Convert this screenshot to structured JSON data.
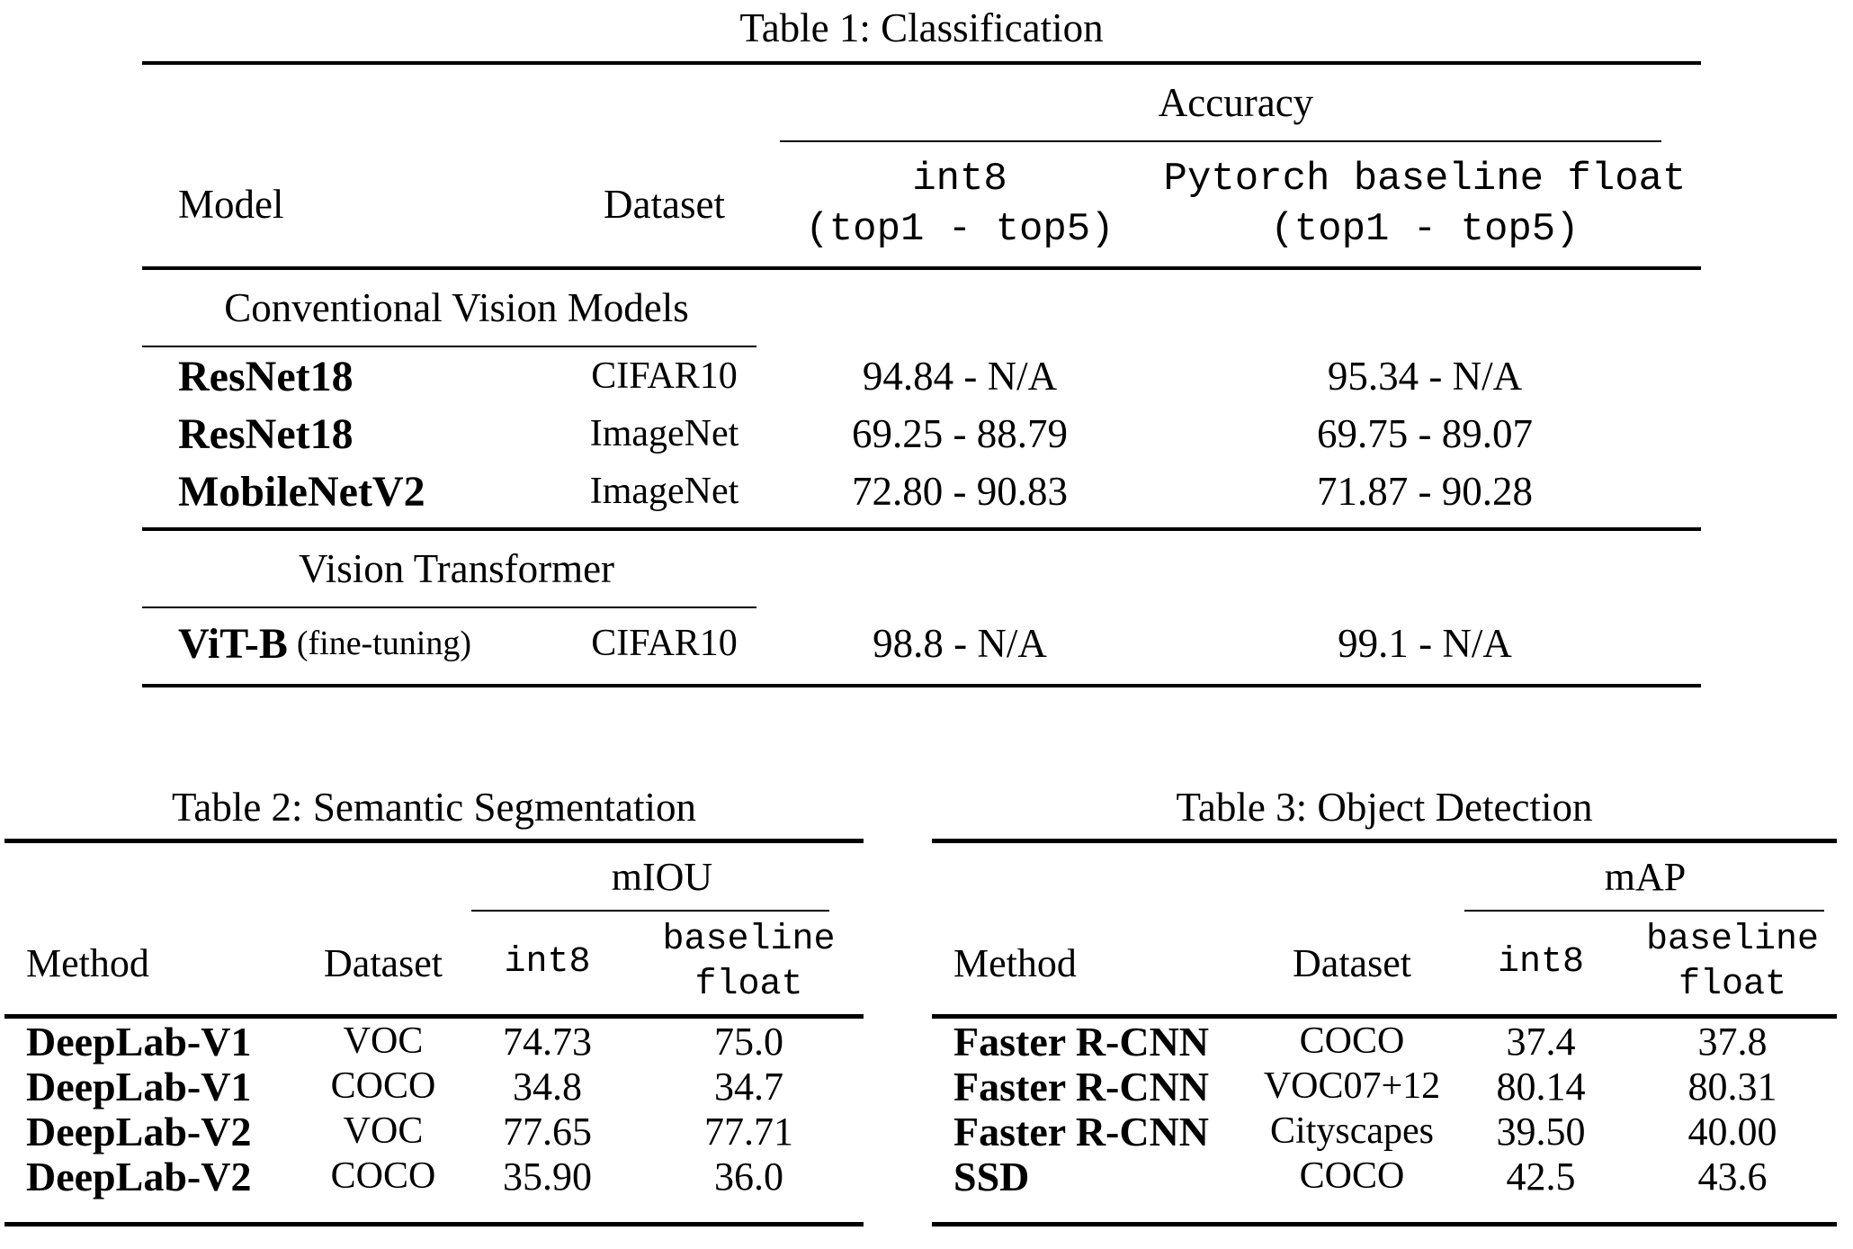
{
  "table1": {
    "caption": "Table 1: Classification",
    "group_header": "Accuracy",
    "headers": {
      "model": "Model",
      "dataset": "Dataset",
      "int8_line1": "int8",
      "int8_line2": "(top1 - top5)",
      "float_line1": "Pytorch baseline float",
      "float_line2": "(top1 - top5)"
    },
    "sections": [
      {
        "title": "Conventional Vision Models",
        "rows": [
          {
            "model": "ResNet18",
            "dataset": "CIFAR10",
            "int8": "94.84 - N/A",
            "baseline": "95.34 - N/A"
          },
          {
            "model": "ResNet18",
            "dataset": "ImageNet",
            "int8": "69.25 - 88.79",
            "baseline": "69.75 - 89.07"
          },
          {
            "model": "MobileNetV2",
            "dataset": "ImageNet",
            "int8": "72.80 - 90.83",
            "baseline": "71.87 - 90.28"
          }
        ]
      },
      {
        "title": "Vision Transformer",
        "rows": [
          {
            "model": "ViT-B",
            "model_suffix": "(fine-tuning)",
            "dataset": "CIFAR10",
            "int8": "98.8 - N/A",
            "baseline": "99.1 - N/A"
          }
        ]
      }
    ]
  },
  "table2": {
    "caption": "Table 2: Semantic Segmentation",
    "group_header": "mIOU",
    "headers": {
      "method": "Method",
      "dataset": "Dataset",
      "int8": "int8",
      "baseline_line1": "baseline",
      "baseline_line2": "float"
    },
    "rows": [
      {
        "method": "DeepLab-V1",
        "dataset": "VOC",
        "int8": "74.73",
        "baseline": "75.0"
      },
      {
        "method": "DeepLab-V1",
        "dataset": "COCO",
        "int8": "34.8",
        "baseline": "34.7"
      },
      {
        "method": "DeepLab-V2",
        "dataset": "VOC",
        "int8": "77.65",
        "baseline": "77.71"
      },
      {
        "method": "DeepLab-V2",
        "dataset": "COCO",
        "int8": "35.90",
        "baseline": "36.0"
      }
    ]
  },
  "table3": {
    "caption": "Table 3: Object Detection",
    "group_header": "mAP",
    "headers": {
      "method": "Method",
      "dataset": "Dataset",
      "int8": "int8",
      "baseline_line1": "baseline",
      "baseline_line2": "float"
    },
    "rows": [
      {
        "method": "Faster R-CNN",
        "dataset": "COCO",
        "int8": "37.4",
        "baseline": "37.8"
      },
      {
        "method": "Faster R-CNN",
        "dataset": "VOC07+12",
        "int8": "80.14",
        "baseline": "80.31"
      },
      {
        "method": "Faster R-CNN",
        "dataset": "Cityscapes",
        "int8": "39.50",
        "baseline": "40.00"
      },
      {
        "method": "SSD",
        "dataset": "COCO",
        "int8": "42.5",
        "baseline": "43.6"
      }
    ]
  }
}
